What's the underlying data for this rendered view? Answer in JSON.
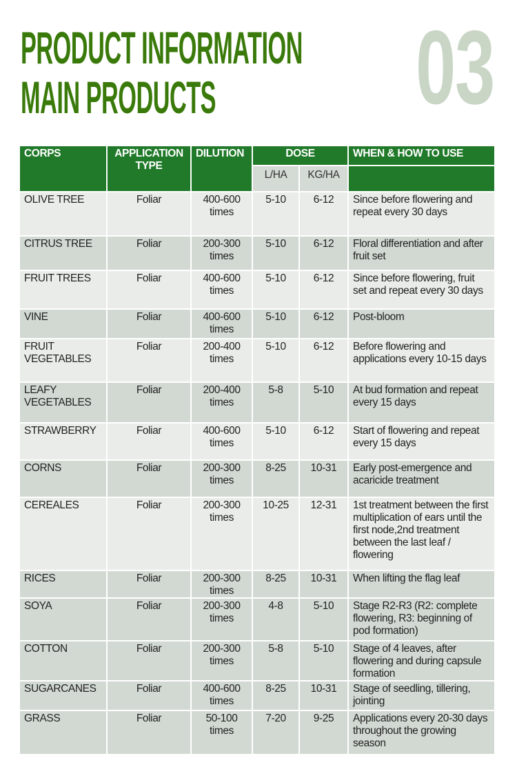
{
  "header": {
    "title_line1": "PRODUCT INFORMATION",
    "title_line2": "MAIN PRODUCTS",
    "section_number": "03"
  },
  "colors": {
    "title_green": "#3a7a0a",
    "header_green": "#217a2a",
    "number_gray": "#c9d6c6",
    "row_light": "#e9ece9",
    "row_dark": "#d2d9d2"
  },
  "table": {
    "columns": {
      "crops": "CORPS",
      "application": "APPLICATION TYPE",
      "dilution": "DILUTION",
      "dose": "DOSE",
      "dose_lha": "L/HA",
      "dose_kgha": "KG/HA",
      "when": "WHEN & HOW TO USE"
    },
    "rows": [
      {
        "crop": "OLIVE TREE",
        "type": "Foliar",
        "dilution": "400-600 times",
        "lha": "5-10",
        "kgha": "6-12",
        "when": "Since before flowering and repeat every 30 days"
      },
      {
        "crop": "CITRUS TREE",
        "type": "Foliar",
        "dilution": "200-300 times",
        "lha": "5-10",
        "kgha": "6-12",
        "when": "Floral differentiation and after fruit set"
      },
      {
        "crop": "FRUIT TREES",
        "type": "Foliar",
        "dilution": "400-600 times",
        "lha": "5-10",
        "kgha": "6-12",
        "when": "Since before flowering, fruit set and repeat every 30 days"
      },
      {
        "crop": "VINE",
        "type": "Foliar",
        "dilution": "400-600 times",
        "lha": "5-10",
        "kgha": "6-12",
        "when": "Post-bloom"
      },
      {
        "crop": "FRUIT VEGETABLES",
        "type": "Foliar",
        "dilution": "200-400 times",
        "lha": "5-10",
        "kgha": "6-12",
        "when": "Before flowering and applications every 10-15 days"
      },
      {
        "crop": "LEAFY VEGETABLES",
        "type": "Foliar",
        "dilution": "200-400 times",
        "lha": "5-8",
        "kgha": "5-10",
        "when": "At bud formation and repeat every 15 days"
      },
      {
        "crop": "STRAWBERRY",
        "type": "Foliar",
        "dilution": "400-600 times",
        "lha": "5-10",
        "kgha": "6-12",
        "when": "Start of flowering and repeat every 15 days"
      },
      {
        "crop": "CORNS",
        "type": "Foliar",
        "dilution": "200-300 times",
        "lha": "8-25",
        "kgha": "10-31",
        "when": "Early post-emergence and acaricide treatment"
      },
      {
        "crop": "CEREALES",
        "type": "Foliar",
        "dilution": "200-300 times",
        "lha": "10-25",
        "kgha": "12-31",
        "when": "1st treatment between the first multiplication of ears until the first node,2nd treatment between the last leaf / flowering"
      },
      {
        "crop": "RICES",
        "type": "Foliar",
        "dilution": "200-300 times",
        "lha": "8-25",
        "kgha": "10-31",
        "when": "When lifting the flag leaf"
      },
      {
        "crop": "SOYA",
        "type": "Foliar",
        "dilution": "200-300 times",
        "lha": "4-8",
        "kgha": "5-10",
        "when": "Stage R2-R3 (R2: complete flowering, R3: beginning of pod formation)"
      },
      {
        "crop": "COTTON",
        "type": "Foliar",
        "dilution": "200-300 times",
        "lha": "5-8",
        "kgha": "5-10",
        "when": "Stage of 4 leaves, after flowering and during capsule formation"
      },
      {
        "crop": "SUGARCANES",
        "type": "Foliar",
        "dilution": "400-600 times",
        "lha": "8-25",
        "kgha": "10-31",
        "when": "Stage of seedling, tillering, jointing"
      },
      {
        "crop": "GRASS",
        "type": "Foliar",
        "dilution": "50-100 times",
        "lha": "7-20",
        "kgha": "9-25",
        "when": "Applications every 20-30 days throughout the growing season"
      }
    ]
  }
}
